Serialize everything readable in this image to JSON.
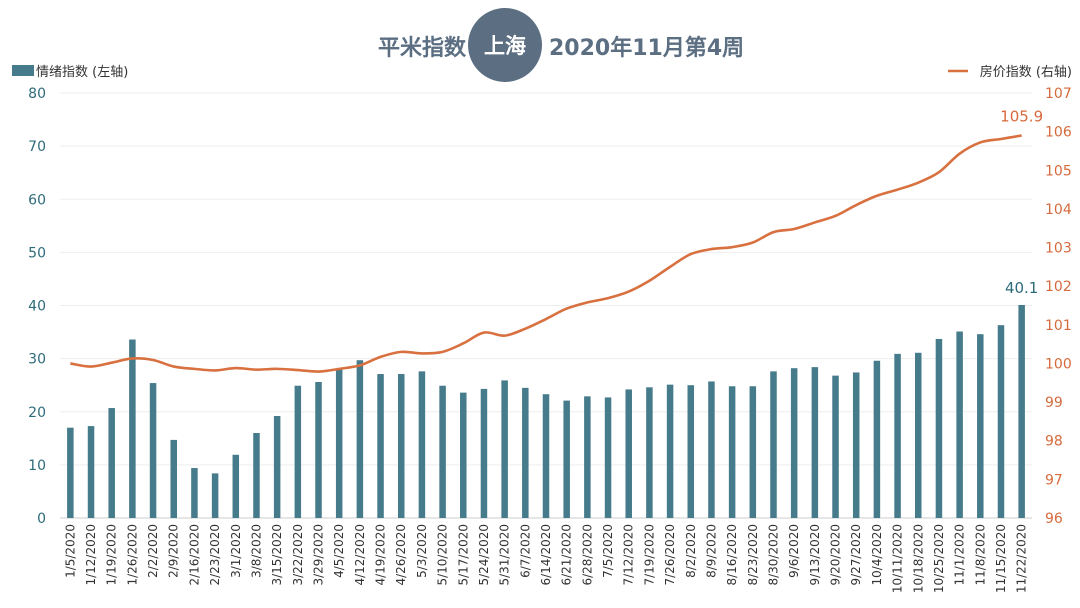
{
  "title": {
    "prefix": "平米指数",
    "city": "上海",
    "suffix": "2020年11月第4周"
  },
  "colors": {
    "bar": "#457b8a",
    "line": "#d8703f",
    "title_circle": "#5b6e82",
    "left_axis": "#2e6b7a",
    "right_axis": "#d66a3c",
    "grid": "#eeeeee"
  },
  "chart_data": {
    "type": "bar",
    "categories": [
      "1/5/2020",
      "1/12/2020",
      "1/19/2020",
      "1/26/2020",
      "2/2/2020",
      "2/9/2020",
      "2/16/2020",
      "2/23/2020",
      "3/1/2020",
      "3/8/2020",
      "3/15/2020",
      "3/22/2020",
      "3/29/2020",
      "4/5/2020",
      "4/12/2020",
      "4/19/2020",
      "4/26/2020",
      "5/3/2020",
      "5/10/2020",
      "5/17/2020",
      "5/24/2020",
      "5/31/2020",
      "6/7/2020",
      "6/14/2020",
      "6/21/2020",
      "6/28/2020",
      "7/5/2020",
      "7/12/2020",
      "7/19/2020",
      "7/26/2020",
      "8/2/2020",
      "8/9/2020",
      "8/16/2020",
      "8/23/2020",
      "8/30/2020",
      "9/6/2020",
      "9/13/2020",
      "9/20/2020",
      "9/27/2020",
      "10/4/2020",
      "10/11/2020",
      "10/18/2020",
      "10/25/2020",
      "11/1/2020",
      "11/8/2020",
      "11/15/2020",
      "11/22/2020"
    ],
    "series": [
      {
        "name": "情绪指数 (左轴)",
        "type": "bar",
        "axis": "left",
        "values": [
          17.0,
          17.3,
          20.7,
          33.6,
          25.4,
          14.7,
          9.4,
          8.4,
          11.9,
          16.0,
          19.2,
          24.9,
          25.6,
          28.0,
          29.7,
          27.1,
          27.1,
          27.6,
          24.9,
          23.6,
          24.3,
          25.9,
          24.5,
          23.3,
          22.1,
          22.9,
          22.7,
          24.2,
          24.6,
          25.1,
          25.0,
          25.7,
          24.8,
          24.8,
          27.6,
          28.2,
          28.4,
          26.8,
          27.4,
          29.6,
          30.9,
          31.1,
          33.7,
          35.1,
          34.6,
          36.3,
          40.1
        ],
        "end_label": "40.1"
      },
      {
        "name": "房价指数 (右轴)",
        "type": "line",
        "axis": "right",
        "values": [
          100.0,
          99.92,
          100.02,
          100.13,
          100.09,
          99.92,
          99.86,
          99.82,
          99.88,
          99.84,
          99.86,
          99.83,
          99.79,
          99.86,
          99.95,
          100.17,
          100.3,
          100.26,
          100.3,
          100.52,
          100.8,
          100.72,
          100.9,
          101.15,
          101.42,
          101.58,
          101.69,
          101.86,
          102.14,
          102.5,
          102.83,
          102.96,
          103.01,
          103.13,
          103.4,
          103.48,
          103.65,
          103.82,
          104.1,
          104.34,
          104.5,
          104.68,
          104.95,
          105.43,
          105.72,
          105.81,
          105.9
        ],
        "end_label": "105.9"
      }
    ],
    "y_left": {
      "min": 0,
      "max": 80,
      "ticks": [
        "0",
        "10",
        "20",
        "30",
        "40",
        "50",
        "60",
        "70",
        "80"
      ]
    },
    "y_right": {
      "min": 96,
      "max": 107,
      "ticks": [
        "96",
        "97",
        "98",
        "99",
        "100",
        "101",
        "102",
        "103",
        "104",
        "105",
        "106",
        "107"
      ]
    },
    "grid": true,
    "legend": {
      "left": "top-left",
      "right": "top-right"
    }
  }
}
